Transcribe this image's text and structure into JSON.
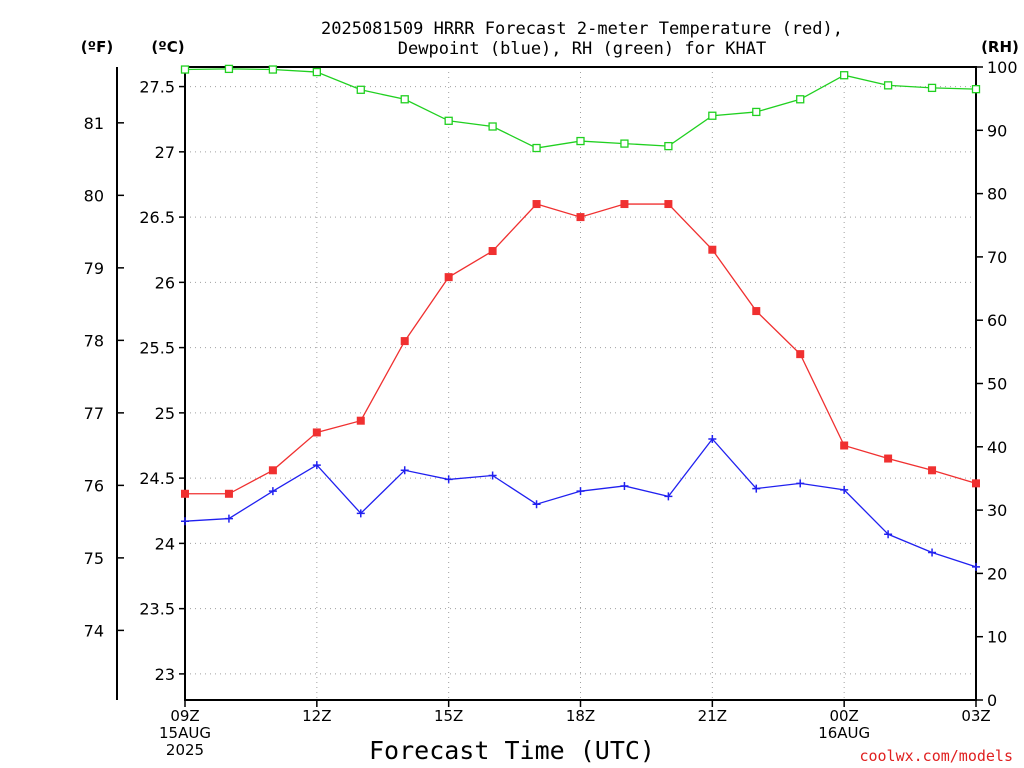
{
  "title_line1": "2025081509 HRRR Forecast 2-meter Temperature (red),",
  "title_line2": "Dewpoint (blue), RH (green) for KHAT",
  "unit_f": "(ºF)",
  "unit_c": "(ºC)",
  "unit_rh": "(RH)",
  "credit": "coolwx.com/models",
  "chart_data": {
    "type": "line",
    "xlabel": "Forecast Time (UTC)",
    "x_hours": [
      0,
      1,
      2,
      3,
      4,
      5,
      6,
      7,
      8,
      9,
      10,
      11,
      12,
      13,
      14,
      15,
      16,
      17,
      18
    ],
    "x_ticks": [
      {
        "hour": 0,
        "lines": [
          "09Z",
          "15AUG",
          "2025"
        ]
      },
      {
        "hour": 3,
        "lines": [
          "12Z"
        ]
      },
      {
        "hour": 6,
        "lines": [
          "15Z"
        ]
      },
      {
        "hour": 9,
        "lines": [
          "18Z"
        ]
      },
      {
        "hour": 12,
        "lines": [
          "21Z"
        ]
      },
      {
        "hour": 15,
        "lines": [
          "00Z",
          "16AUG"
        ]
      },
      {
        "hour": 18,
        "lines": [
          "03Z"
        ]
      }
    ],
    "xlim": [
      0,
      18
    ],
    "celsius_axis": {
      "ylim": [
        22.8,
        27.65
      ],
      "ticks": [
        23,
        23.5,
        24,
        24.5,
        25,
        25.5,
        26,
        26.5,
        27,
        27.5
      ]
    },
    "fahrenheit_axis": {
      "ticks": [
        74,
        75,
        76,
        77,
        78,
        79,
        80,
        81
      ]
    },
    "rh_axis": {
      "ylim": [
        0,
        100
      ],
      "ticks": [
        0,
        10,
        20,
        30,
        40,
        50,
        60,
        70,
        80,
        90,
        100
      ]
    },
    "grid": true,
    "series": [
      {
        "name": "Temperature",
        "axis": "celsius",
        "color": "#f03030",
        "marker": "filled-square",
        "values": [
          24.38,
          24.38,
          24.56,
          24.85,
          24.94,
          25.55,
          26.04,
          26.24,
          26.6,
          26.5,
          26.6,
          26.6,
          26.25,
          25.78,
          25.45,
          24.75,
          24.65,
          24.56,
          24.46
        ]
      },
      {
        "name": "Dewpoint",
        "axis": "celsius",
        "color": "#2020f0",
        "marker": "plus",
        "values": [
          24.17,
          24.19,
          24.4,
          24.6,
          24.23,
          24.56,
          24.49,
          24.52,
          24.3,
          24.4,
          24.44,
          24.36,
          24.8,
          24.42,
          24.46,
          24.41,
          24.07,
          23.93,
          23.82
        ]
      },
      {
        "name": "RH",
        "axis": "rh",
        "color": "#20d020",
        "marker": "open-square",
        "values": [
          99.6,
          99.7,
          99.6,
          99.2,
          96.4,
          94.9,
          91.5,
          90.6,
          87.2,
          88.3,
          87.9,
          87.5,
          92.3,
          92.9,
          94.9,
          98.7,
          97.1,
          96.7,
          96.5
        ]
      }
    ]
  }
}
